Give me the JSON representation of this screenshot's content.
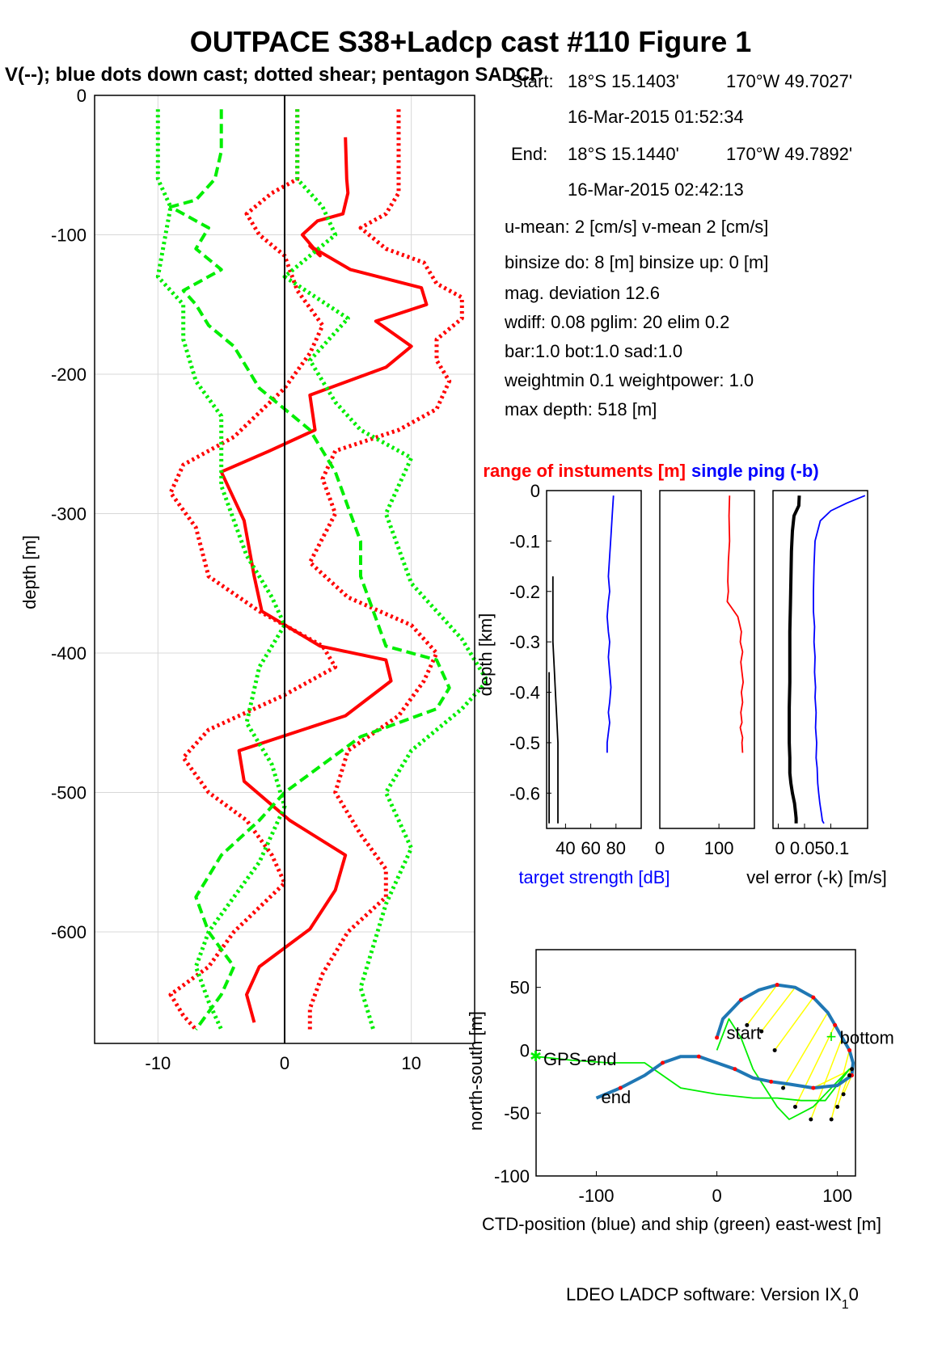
{
  "figure": {
    "title": "OUTPACE S38+Ladcp cast #110  Figure 1",
    "subtitle": "V(--); blue dots down cast; dotted shear; pentagon SADCP",
    "footer": "LDEO LADCP software: Version IX",
    "footer_sub": "1",
    "footer_tail": "0"
  },
  "info": {
    "start_label": "Start:",
    "start_lat": "18°S 15.1403'",
    "start_lon": "170°W 49.7027'",
    "start_time": "16-Mar-2015 01:52:34",
    "end_label": "End:",
    "end_lat": "18°S 15.1440'",
    "end_lon": "170°W 49.7892'",
    "end_time": "16-Mar-2015 02:42:13",
    "means": "u-mean:   2 [cm/s]    v-mean   2 [cm/s]",
    "binsize": "binsize do: 8 [m]  binsize up:  0 [m]",
    "magdev": "mag. deviation 12.6",
    "wdiff": "wdiff: 0.08  pglim: 20  elim 0.2",
    "bar": "  bar:1.0 bot:1.0 sad:1.0",
    "weight": "weightmin 0.1  weightpower: 1.0",
    "maxdepth": "max depth: 518 [m]"
  },
  "colors": {
    "red": "#ff0000",
    "green": "#00ee00",
    "blue": "#0000ff",
    "black": "#000000",
    "ctd": "#1f77b4",
    "yellow": "#ffff00"
  },
  "chart_data": [
    {
      "type": "line",
      "id": "velocity-profile",
      "ylabel": "depth [m]",
      "xlim": [
        -15,
        15
      ],
      "ylim": [
        -680,
        0
      ],
      "xticks": [
        -10,
        0,
        10
      ],
      "yticks": [
        0,
        -100,
        -200,
        -300,
        -400,
        -500,
        -600
      ],
      "grid": true,
      "series": [
        {
          "color": "red",
          "style": "solid-thick",
          "x": [
            4.8,
            4.9,
            5.0,
            4.6,
            2.6,
            1.4,
            2.8,
            2.0,
            5.2,
            10.8,
            11.2,
            7.2,
            10.0,
            8.0,
            2.0,
            2.4,
            -1.2,
            -5.0,
            -3.2,
            -2.4,
            -1.8,
            2.8,
            8.0,
            8.4,
            4.8,
            -3.6,
            -3.2,
            0.4,
            4.8,
            4.0,
            2.0,
            -2.0,
            -3.0,
            -2.4
          ],
          "depth": [
            -30,
            -60,
            -70,
            -85,
            -90,
            -100,
            -115,
            -108,
            -125,
            -138,
            -150,
            -162,
            -180,
            -195,
            -215,
            -240,
            -255,
            -270,
            -305,
            -345,
            -370,
            -395,
            -405,
            -420,
            -445,
            -470,
            -492,
            -520,
            -545,
            -570,
            -598,
            -625,
            -645,
            -665
          ]
        },
        {
          "color": "red",
          "style": "dotted-envelope",
          "x": [
            9.0,
            9.0,
            9.0,
            8.0,
            6.0,
            8.0,
            11.0,
            12.0,
            14.0,
            14.0,
            12.0,
            12.0,
            13.0,
            12.0,
            9.0,
            4.0,
            3.0,
            4.0,
            2.0,
            5.0,
            10.0,
            12.0,
            11.0,
            9.0,
            5.0,
            4.0,
            6.0,
            8.0,
            8.0,
            5.0,
            3.0,
            2.0,
            2.0
          ],
          "depth": [
            -10,
            -60,
            -70,
            -85,
            -95,
            -110,
            -120,
            -135,
            -145,
            -160,
            -175,
            -190,
            -205,
            -225,
            -240,
            -255,
            -275,
            -300,
            -335,
            -360,
            -380,
            -400,
            -420,
            -445,
            -470,
            -500,
            -530,
            -555,
            -575,
            -600,
            -630,
            -655,
            -670
          ]
        },
        {
          "color": "red",
          "style": "dotted-envelope",
          "x": [
            1.0,
            1.0,
            -1.0,
            -3.0,
            -2.0,
            0.0,
            1.0,
            3.0,
            2.0,
            0.0,
            -4.0,
            -8.0,
            -9.0,
            -7.0,
            -6.0,
            -2.0,
            3.0,
            4.0,
            0.0,
            -6.0,
            -8.0,
            -6.0,
            -3.0,
            -1.0,
            0.0,
            -4.0,
            -6.0,
            -9.0,
            -8.0,
            -7.0
          ],
          "depth": [
            -10,
            -60,
            -70,
            -85,
            -100,
            -115,
            -140,
            -165,
            -185,
            -210,
            -245,
            -265,
            -285,
            -310,
            -345,
            -370,
            -395,
            -410,
            -430,
            -455,
            -475,
            -500,
            -520,
            -545,
            -565,
            -600,
            -625,
            -645,
            -660,
            -670
          ]
        },
        {
          "color": "green",
          "style": "dashed-thick",
          "x": [
            -5.0,
            -5.0,
            -5.5,
            -7.0,
            -9.0,
            -6.0,
            -7.0,
            -5.0,
            -8.0,
            -7.0,
            -6.0,
            -4.0,
            -3.0,
            -2.0,
            0.0,
            2.0,
            3.0,
            4.0,
            5.0,
            6.0,
            6.0,
            7.0,
            8.0,
            12.0,
            13.0,
            12.0,
            6.0,
            3.0,
            0.0,
            -2.0,
            -5.0,
            -7.0,
            -6.0,
            -4.0,
            -5.0,
            -7.0
          ],
          "depth": [
            -10,
            -40,
            -60,
            -75,
            -80,
            -95,
            -110,
            -125,
            -140,
            -150,
            -165,
            -180,
            -195,
            -210,
            -225,
            -240,
            -255,
            -270,
            -295,
            -320,
            -345,
            -370,
            -395,
            -405,
            -425,
            -440,
            -460,
            -480,
            -500,
            -520,
            -545,
            -575,
            -600,
            -625,
            -645,
            -670
          ]
        },
        {
          "color": "green",
          "style": "dotted-envelope",
          "x": [
            -10.0,
            -10.0,
            -9.0,
            -10.0,
            -8.0,
            -8.0,
            -7.0,
            -5.0,
            -5.0,
            -3.0,
            -1.0,
            0.0,
            -2.0,
            -3.0,
            -1.0,
            0.0,
            -1.0,
            -2.0,
            -4.0,
            -6.0,
            -7.0,
            -6.0,
            -5.0
          ],
          "depth": [
            -10,
            -60,
            -80,
            -130,
            -150,
            -175,
            -205,
            -230,
            -280,
            -330,
            -360,
            -380,
            -410,
            -450,
            -480,
            -510,
            -530,
            -550,
            -575,
            -600,
            -625,
            -650,
            -670
          ]
        },
        {
          "color": "green",
          "style": "dotted-envelope",
          "x": [
            1.0,
            1.0,
            3.0,
            4.0,
            0.0,
            5.0,
            2.0,
            4.0,
            6.0,
            10.0,
            8.0,
            10.0,
            14.0,
            16.0,
            14.0,
            10.0,
            8.0,
            10.0,
            8.0,
            7.0,
            6.0,
            7.0
          ],
          "depth": [
            -10,
            -60,
            -80,
            -100,
            -130,
            -160,
            -190,
            -220,
            -240,
            -260,
            -300,
            -350,
            -390,
            -420,
            -440,
            -470,
            -500,
            -540,
            -580,
            -610,
            -640,
            -670
          ]
        }
      ]
    },
    {
      "type": "line",
      "id": "target-strength",
      "title": "range of instuments [m]",
      "title2": "single ping (-b)",
      "xlabel": "target strength [dB]",
      "ylabel": "depth [km]",
      "xticks": [
        40,
        60,
        80
      ],
      "yticks": [
        0,
        -0.1,
        -0.2,
        -0.3,
        -0.4,
        -0.5,
        -0.6
      ],
      "xlim": [
        25,
        100
      ],
      "ylim": [
        -0.67,
        0
      ],
      "series": [
        {
          "color": "blue",
          "x": [
            78,
            77,
            76,
            75,
            74,
            75,
            74,
            73,
            74,
            75,
            74,
            75,
            76,
            75,
            74,
            75,
            74,
            73,
            73
          ],
          "depth": [
            -0.01,
            -0.05,
            -0.09,
            -0.13,
            -0.17,
            -0.2,
            -0.22,
            -0.25,
            -0.28,
            -0.3,
            -0.33,
            -0.36,
            -0.39,
            -0.42,
            -0.44,
            -0.46,
            -0.48,
            -0.5,
            -0.52
          ]
        },
        {
          "color": "black",
          "x": [
            30,
            30,
            31,
            32,
            33,
            34,
            34,
            34,
            34
          ],
          "depth": [
            -0.17,
            -0.3,
            -0.35,
            -0.4,
            -0.45,
            -0.5,
            -0.55,
            -0.6,
            -0.66
          ]
        },
        {
          "color": "black",
          "x": [
            27,
            27,
            27,
            27
          ],
          "depth": [
            -0.36,
            -0.5,
            -0.6,
            -0.66
          ]
        }
      ]
    },
    {
      "type": "line",
      "id": "range",
      "xticks": [
        0,
        100
      ],
      "xlim": [
        0,
        160
      ],
      "ylim": [
        -0.67,
        0
      ],
      "series": [
        {
          "color": "red",
          "x": [
            118,
            117,
            118,
            116,
            115,
            116,
            115,
            114,
            120,
            132,
            138,
            136,
            140,
            137,
            139,
            141,
            138,
            140,
            137,
            139,
            136,
            140,
            139,
            140
          ],
          "depth": [
            -0.01,
            -0.05,
            -0.1,
            -0.14,
            -0.18,
            -0.2,
            -0.21,
            -0.22,
            -0.23,
            -0.25,
            -0.28,
            -0.3,
            -0.32,
            -0.34,
            -0.36,
            -0.38,
            -0.4,
            -0.42,
            -0.44,
            -0.46,
            -0.47,
            -0.49,
            -0.5,
            -0.52
          ]
        }
      ]
    },
    {
      "type": "line",
      "id": "velocity-error",
      "xlabel": "vel error (-k) [m/s]",
      "xticks": [
        0,
        0.05,
        0.1
      ],
      "xticklabels": [
        "0",
        "0.050.1"
      ],
      "xlim": [
        -0.01,
        0.17
      ],
      "ylim": [
        -0.67,
        0
      ],
      "series": [
        {
          "color": "black",
          "style": "thick",
          "x": [
            0.04,
            0.039,
            0.03,
            0.027,
            0.025,
            0.024,
            0.023,
            0.022,
            0.022,
            0.022,
            0.021,
            0.021,
            0.021,
            0.022,
            0.022,
            0.024,
            0.027,
            0.031,
            0.033,
            0.034,
            0.034
          ],
          "depth": [
            -0.01,
            -0.03,
            -0.05,
            -0.08,
            -0.12,
            -0.18,
            -0.23,
            -0.28,
            -0.33,
            -0.38,
            -0.43,
            -0.48,
            -0.5,
            -0.53,
            -0.56,
            -0.58,
            -0.6,
            -0.62,
            -0.64,
            -0.65,
            -0.66
          ]
        },
        {
          "color": "blue",
          "x": [
            0.165,
            0.13,
            0.1,
            0.08,
            0.07,
            0.068,
            0.067,
            0.067,
            0.069,
            0.068,
            0.07,
            0.069,
            0.071,
            0.07,
            0.072,
            0.071,
            0.073,
            0.072,
            0.074,
            0.075,
            0.077,
            0.079,
            0.082,
            0.084,
            0.087
          ],
          "depth": [
            -0.01,
            -0.025,
            -0.04,
            -0.06,
            -0.1,
            -0.15,
            -0.2,
            -0.24,
            -0.27,
            -0.3,
            -0.33,
            -0.36,
            -0.39,
            -0.41,
            -0.44,
            -0.47,
            -0.5,
            -0.53,
            -0.55,
            -0.58,
            -0.6,
            -0.62,
            -0.64,
            -0.655,
            -0.66
          ]
        }
      ]
    },
    {
      "type": "line",
      "id": "positions",
      "xlabel": "CTD-position (blue) and ship (green) east-west [m]",
      "ylabel": "north-south [m]",
      "xlim": [
        -150,
        115
      ],
      "ylim": [
        -100,
        80
      ],
      "xticks": [
        -100,
        0,
        100
      ],
      "yticks": [
        50,
        0,
        -50,
        -100
      ],
      "labels": {
        "start": "start",
        "end": "end",
        "gps_end": "GPS-end",
        "bottom": "bottom"
      },
      "series": [
        {
          "color": "ctd",
          "style": "thick",
          "x": [
            0,
            5,
            20,
            35,
            50,
            65,
            80,
            92,
            98,
            104,
            110,
            113,
            112,
            100,
            80,
            60,
            45,
            30,
            15,
            0,
            -15,
            -30,
            -45,
            -60,
            -80,
            -100
          ],
          "y": [
            10,
            25,
            40,
            48,
            52,
            50,
            42,
            30,
            20,
            10,
            0,
            -10,
            -20,
            -28,
            -30,
            -27,
            -25,
            -22,
            -15,
            -10,
            -5,
            -5,
            -10,
            -20,
            -30,
            -38
          ]
        },
        {
          "color": "green",
          "x": [
            -150,
            -120,
            -90,
            -60,
            -30,
            0,
            30,
            50,
            70,
            90,
            110,
            100,
            80,
            60,
            50,
            40,
            30,
            20,
            10,
            0
          ],
          "y": [
            -5,
            -8,
            -10,
            -10,
            -30,
            -35,
            -38,
            -38,
            -40,
            -40,
            -15,
            -25,
            -45,
            -55,
            -45,
            -30,
            -15,
            10,
            25,
            0
          ]
        },
        {
          "color": "yellow",
          "style": "links",
          "x": [
            25,
            37,
            48,
            55,
            65,
            78,
            95,
            100,
            105,
            110,
            112
          ],
          "y": [
            20,
            15,
            0,
            -30,
            -45,
            -55,
            -55,
            -45,
            -35,
            -20,
            -15
          ]
        }
      ]
    }
  ]
}
